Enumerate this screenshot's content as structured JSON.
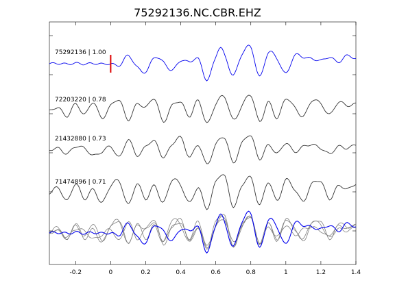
{
  "chart_data": {
    "type": "line",
    "title": "75292136.NC.CBR.EHZ",
    "xlabel": "",
    "ylabel": "",
    "xlim": [
      -0.35,
      1.4
    ],
    "x_ticks": [
      -0.2,
      0,
      0.2,
      0.4,
      0.6,
      0.8,
      1,
      1.2,
      1.4
    ],
    "x_tick_labels": [
      "-0.2",
      "0",
      "0.2",
      "0.4",
      "0.6",
      "0.8",
      "1",
      "1.2",
      "1.4"
    ],
    "grid": false,
    "pick_marker": {
      "x": 0,
      "color": "#dd0000"
    },
    "colors": {
      "reference": "#0000ee",
      "trace": "#333333",
      "overlay": "#808080"
    },
    "series": [
      {
        "name": "75292136 | 1.00",
        "color": "#0000ee",
        "x": [
          -0.35,
          -0.3,
          -0.25,
          -0.2,
          -0.15,
          -0.1,
          -0.05,
          0,
          0.05,
          0.1,
          0.15,
          0.2,
          0.25,
          0.3,
          0.35,
          0.4,
          0.45,
          0.5,
          0.55,
          0.6,
          0.625,
          0.65,
          0.7,
          0.75,
          0.8,
          0.85,
          0.9,
          0.95,
          1,
          1.05,
          1.1,
          1.15,
          1.2,
          1.25,
          1.3,
          1.35,
          1.4
        ],
        "values": [
          0,
          0.02,
          -0.02,
          0.03,
          -0.02,
          0.02,
          -0.02,
          0,
          -0.1,
          0.5,
          -0.2,
          -0.5,
          0.4,
          0.1,
          -0.4,
          0.2,
          0.1,
          0.3,
          -1.0,
          0.4,
          1.0,
          0.5,
          -0.7,
          0.6,
          1.0,
          -0.8,
          0.7,
          0.3,
          -0.6,
          0.5,
          0.4,
          0.3,
          0.2,
          0.4,
          0.1,
          0.5,
          0.3
        ]
      },
      {
        "name": "72203220 | 0.78",
        "color": "#333333",
        "x": [
          -0.35,
          -0.3,
          -0.25,
          -0.2,
          -0.15,
          -0.1,
          -0.05,
          0,
          0.05,
          0.1,
          0.15,
          0.2,
          0.25,
          0.3,
          0.35,
          0.4,
          0.45,
          0.5,
          0.55,
          0.6,
          0.65,
          0.7,
          0.75,
          0.8,
          0.85,
          0.9,
          0.95,
          1,
          1.05,
          1.1,
          1.15,
          1.2,
          1.25,
          1.3,
          1.35,
          1.4
        ],
        "values": [
          0,
          0.2,
          -0.3,
          0.4,
          -0.2,
          0.5,
          -0.4,
          0.3,
          0.6,
          -0.5,
          0.4,
          0.2,
          0.7,
          -0.6,
          0.3,
          0.5,
          -0.3,
          0.6,
          -0.7,
          0.4,
          0.8,
          -0.5,
          0.3,
          0.9,
          -0.6,
          0.5,
          -0.4,
          0.7,
          0.2,
          -0.3,
          0.6,
          0.4,
          -0.2,
          0.5,
          0.3,
          0.4
        ]
      },
      {
        "name": "21432880 | 0.73",
        "color": "#333333",
        "x": [
          -0.35,
          -0.3,
          -0.25,
          -0.2,
          -0.15,
          -0.1,
          -0.05,
          0,
          0.05,
          0.1,
          0.15,
          0.2,
          0.25,
          0.3,
          0.35,
          0.4,
          0.45,
          0.5,
          0.55,
          0.6,
          0.65,
          0.7,
          0.75,
          0.8,
          0.85,
          0.9,
          0.95,
          1,
          1.05,
          1.1,
          1.15,
          1.2,
          1.25,
          1.3,
          1.35,
          1.4
        ],
        "values": [
          0,
          0.1,
          -0.2,
          0.2,
          0.1,
          -0.3,
          -0.1,
          0.2,
          -0.4,
          0.6,
          -0.3,
          0.2,
          0.5,
          -0.4,
          0.3,
          0.7,
          -0.4,
          0.3,
          -0.8,
          0.3,
          0.7,
          -0.7,
          0.4,
          0.8,
          -0.5,
          0.3,
          -0.2,
          0.4,
          -0.1,
          0.2,
          0.3,
          0.1,
          -0.2,
          0.2,
          0.1,
          0.3
        ]
      },
      {
        "name": "71474896 | 0.71",
        "color": "#333333",
        "x": [
          -0.35,
          -0.3,
          -0.25,
          -0.2,
          -0.15,
          -0.1,
          -0.05,
          0,
          0.05,
          0.1,
          0.15,
          0.2,
          0.25,
          0.3,
          0.35,
          0.4,
          0.45,
          0.5,
          0.55,
          0.6,
          0.65,
          0.7,
          0.75,
          0.8,
          0.85,
          0.9,
          0.95,
          1,
          1.05,
          1.1,
          1.15,
          1.2,
          1.25,
          1.3,
          1.35,
          1.4
        ],
        "values": [
          0,
          0.3,
          -0.4,
          0.5,
          -0.3,
          0.2,
          -0.5,
          0.4,
          0.6,
          -0.6,
          0.5,
          -0.3,
          0.4,
          -0.5,
          0.7,
          0.4,
          -0.5,
          0.3,
          -0.8,
          0.6,
          0.9,
          -0.7,
          0.4,
          0.8,
          -0.6,
          0.6,
          -0.4,
          0.7,
          0.2,
          -0.4,
          0.5,
          0.6,
          -0.3,
          0.4,
          0.2,
          0.5
        ]
      }
    ]
  }
}
